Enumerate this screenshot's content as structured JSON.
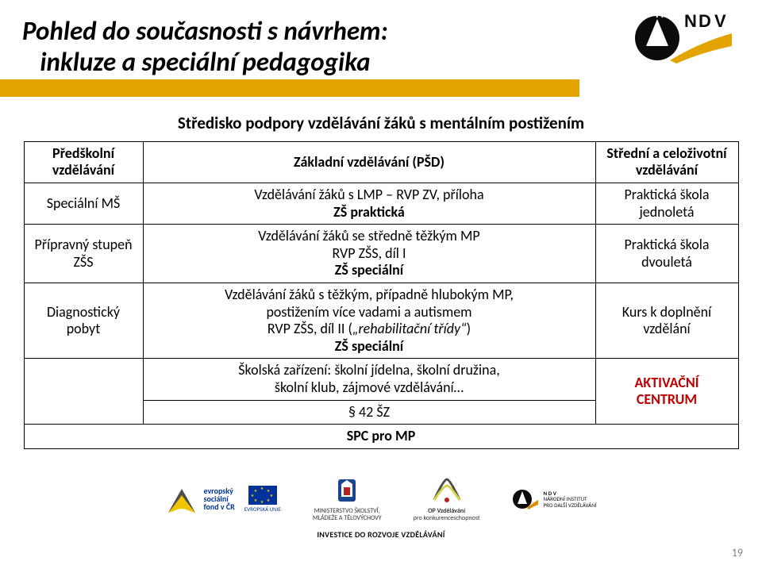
{
  "title_line1": "Pohled do současnosti s návrhem:",
  "title_line2": "inkluze a speciální pedagogika",
  "subheading": "Středisko podpory vzdělávání žáků s mentálním postižením",
  "table": {
    "r1c1": "Předškolní vzdělávání",
    "r1c2": "Základní vzdělávání (PŠD)",
    "r1c3": "Střední a celoživotní vzdělávání",
    "r2c1": "Speciální MŠ",
    "r2c2_l1": "Vzdělávání žáků s LMP – RVP ZV, příloha",
    "r2c2_l2": "ZŠ praktická",
    "r2c3": "Praktická škola jednoletá",
    "r3c1": "Přípravný stupeň ZŠS",
    "r3c2_l1": "Vzdělávání žáků se středně těžkým MP",
    "r3c2_l2": "RVP ZŠS, díl I",
    "r3c2_l3": "ZŠ speciální",
    "r3c3": "Praktická škola dvouletá",
    "r4c1": "Diagnostický pobyt",
    "r4c2_l1": "Vzdělávání žáků s těžkým, případně hlubokým MP,",
    "r4c2_l2": "postižením více vadami a autismem",
    "r4c2_l3": "RVP ZŠS, díl II („rehabilitační třídy“)",
    "r4c2_l4": "ZŠ speciální",
    "r4c3": "Kurs k doplnění vzdělání",
    "r5c2_l1": "Školská zařízení: školní jídelna, školní družina,",
    "r5c2_l2": "školní klub, zájmové vzdělávání…",
    "r5c3_l1": "AKTIVAČNÍ",
    "r5c3_l2": "CENTRUM",
    "r6c2": "§ 42 ŠZ",
    "spc": "SPC pro MP"
  },
  "logos": {
    "esf_label": "evropský\nsociální\nfond v ČR",
    "eu_label": "EVROPSKÁ UNIE",
    "msmt_l1": "MINISTERSTVO ŠKOLSTVÍ,",
    "msmt_l2": "MLÁDEŽE A TĚLOVÝCHOVY",
    "opvk_l1": "OP Vzdělávání",
    "opvk_l2": "pro konkurenceschopnost",
    "nidv_l1": "NÁRODNÍ INSTITUT",
    "nidv_l2": "PRO DALŠÍ VZDĚLÁVÁNÍ",
    "footer_caption": "INVESTICE DO ROZVOJE VZDĚLÁVÁNÍ"
  },
  "page_num": "19",
  "colors": {
    "orange": "#e4a400",
    "red": "#c00000",
    "logo_dark": "#0b0b0b",
    "logo_orange": "#e4a400",
    "eu_blue": "#003399",
    "eu_gold": "#ffcc00",
    "msmt_blue": "#19468f",
    "nidv_orange": "#e08a00",
    "page_num_color": "#808080"
  },
  "fonts": {
    "title_size_pt": 25,
    "subheading_size_pt": 16,
    "cell_size_pt": 13,
    "family": "Calibri"
  }
}
